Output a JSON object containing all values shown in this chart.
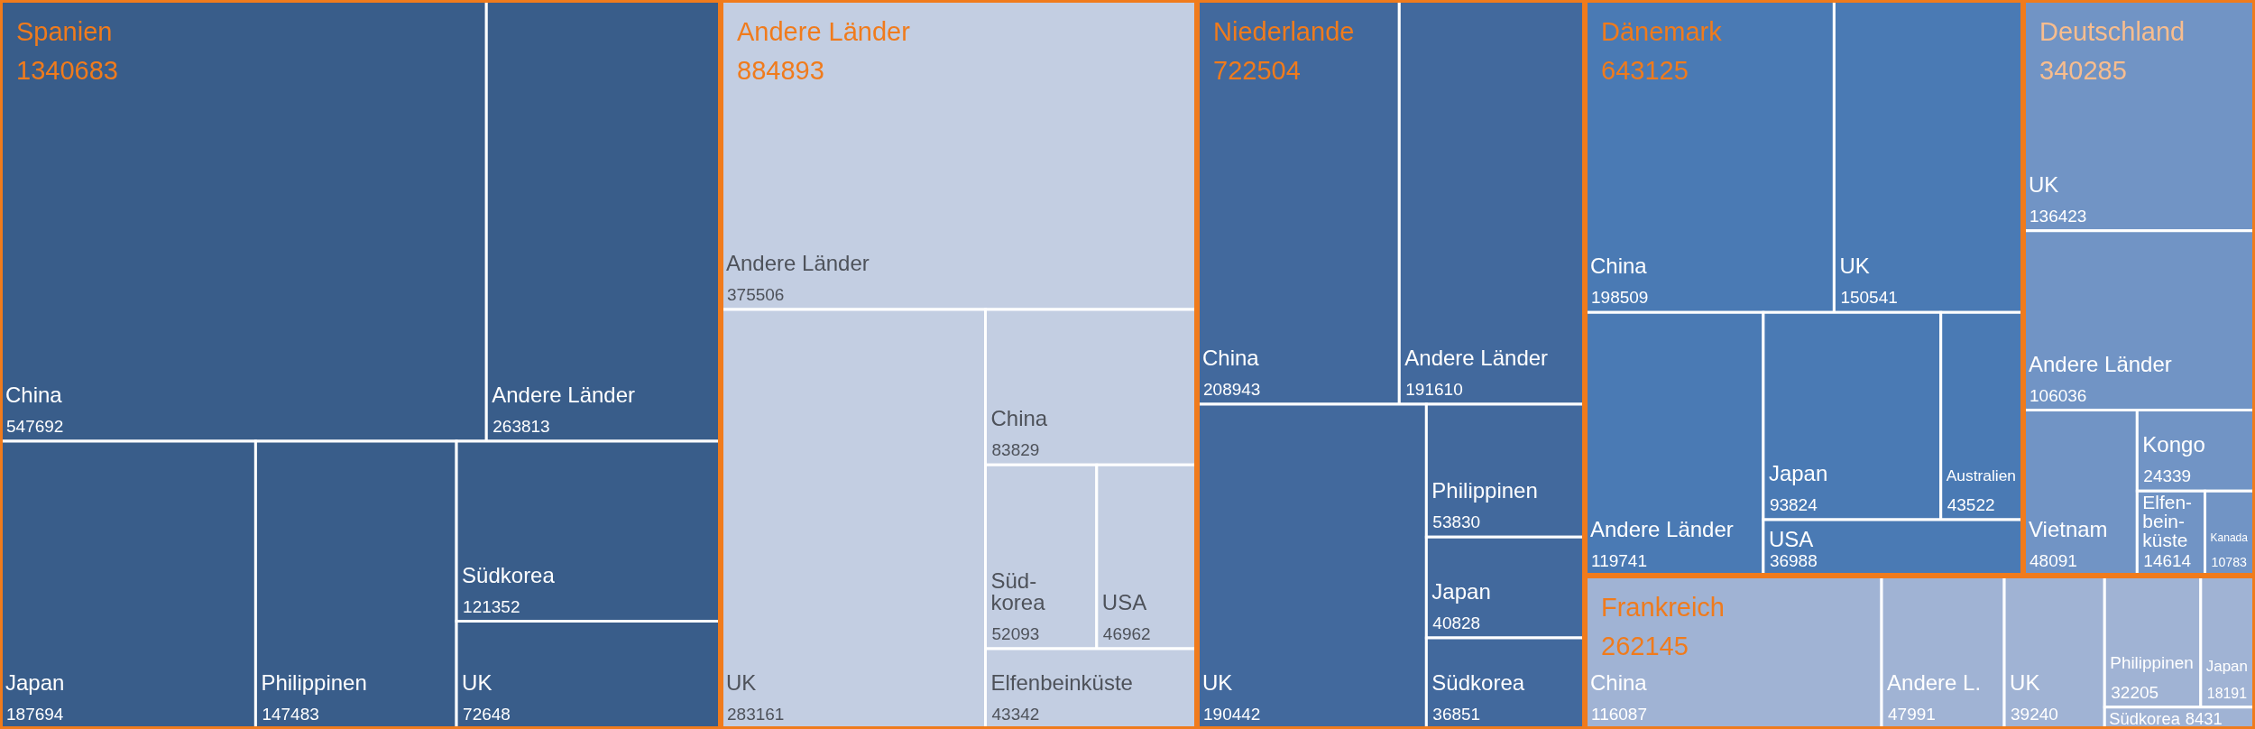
{
  "chart_data": [
    {
      "type": "other",
      "title": "Spanien",
      "subtitle": "1340683",
      "categories": [
        "China",
        "Andere Länder",
        "Japan",
        "Philippinen",
        "Südkorea",
        "UK"
      ],
      "values": [
        547692,
        263813,
        187694,
        147483,
        121352,
        72648
      ],
      "color": "#395d8a",
      "data_labels": true
    },
    {
      "type": "other",
      "title": "Andere Länder",
      "subtitle": "884893",
      "categories": [
        "Andere Länder",
        "UK",
        "China",
        "Süd-korea",
        "USA",
        "Elfenbeinküste"
      ],
      "values": [
        375506,
        283161,
        83829,
        52093,
        46962,
        43342
      ],
      "color": "#c3cee2",
      "data_labels": true
    },
    {
      "type": "other",
      "title": "Niederlande",
      "subtitle": "722504",
      "categories": [
        "China",
        "Andere Länder",
        "UK",
        "Philippinen",
        "Japan",
        "Südkorea"
      ],
      "values": [
        208943,
        191610,
        190442,
        53830,
        40828,
        36851
      ],
      "color": "#42699d",
      "data_labels": true
    },
    {
      "type": "other",
      "title": "Dänemark",
      "subtitle": "643125",
      "categories": [
        "China",
        "UK",
        "Andere Länder",
        "Japan",
        "Australien",
        "USA"
      ],
      "values": [
        198509,
        150541,
        119741,
        93824,
        43522,
        36988
      ],
      "color": "#4a7ab4",
      "data_labels": true
    },
    {
      "type": "other",
      "title": "Deutschland",
      "subtitle": "340285",
      "categories": [
        "UK",
        "Andere Länder",
        "Vietnam",
        "Kongo",
        "Elfen-bein-küste",
        "Kanada"
      ],
      "values": [
        136423,
        106036,
        48091,
        24339,
        14614,
        10783
      ],
      "color": "#7194c5",
      "data_labels": true
    },
    {
      "type": "other",
      "title": "Frankreich",
      "subtitle": "262145",
      "categories": [
        "China",
        "Andere L.",
        "UK",
        "Philippinen",
        "Japan",
        "Südkorea"
      ],
      "values": [
        116087,
        47991,
        39240,
        32205,
        18191,
        8431
      ],
      "color": "#a0b3d4",
      "data_labels": true
    }
  ]
}
